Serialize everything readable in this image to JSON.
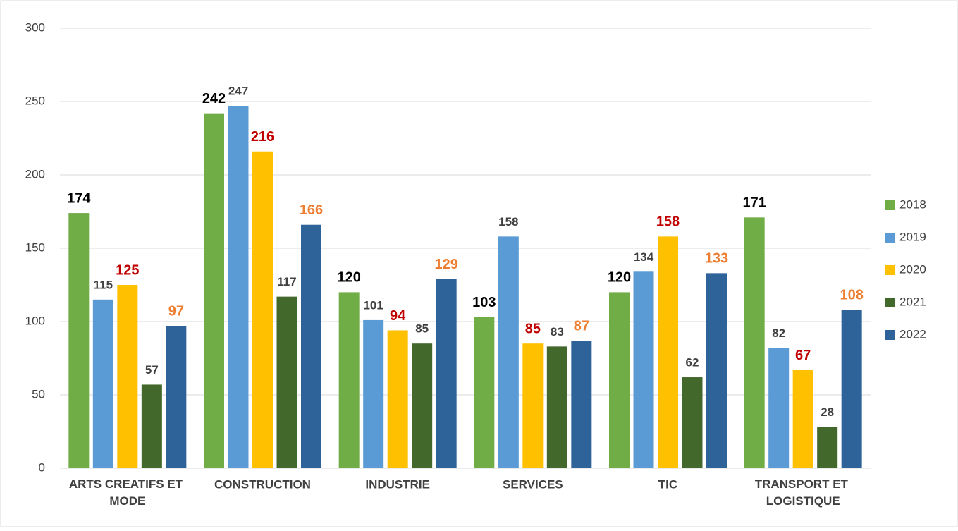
{
  "chart_data": {
    "type": "bar",
    "categories": [
      "ARTS CREATIFS ET MODE",
      "CONSTRUCTION",
      "INDUSTRIE",
      "SERVICES",
      "TIC",
      "TRANSPORT ET LOGISTIQUE"
    ],
    "series": [
      {
        "name": "2018",
        "color": "#70ad47",
        "label_color": "#000000",
        "values": [
          174,
          242,
          120,
          103,
          120,
          171
        ]
      },
      {
        "name": "2019",
        "color": "#5b9bd5",
        "label_color": "#404040",
        "values": [
          115,
          247,
          101,
          158,
          134,
          82
        ]
      },
      {
        "name": "2020",
        "color": "#ffc000",
        "label_color": "#c00000",
        "values": [
          125,
          216,
          94,
          85,
          158,
          67
        ]
      },
      {
        "name": "2021",
        "color": "#43682b",
        "label_color": "#404040",
        "values": [
          57,
          117,
          85,
          83,
          62,
          28
        ]
      },
      {
        "name": "2022",
        "color": "#2e6399",
        "label_color": "#ed7d31",
        "values": [
          97,
          166,
          129,
          87,
          133,
          108
        ]
      }
    ],
    "ylim": [
      0,
      300
    ],
    "yticks": [
      0,
      50,
      100,
      150,
      200,
      250,
      300
    ],
    "grid": true,
    "legend": "right"
  }
}
